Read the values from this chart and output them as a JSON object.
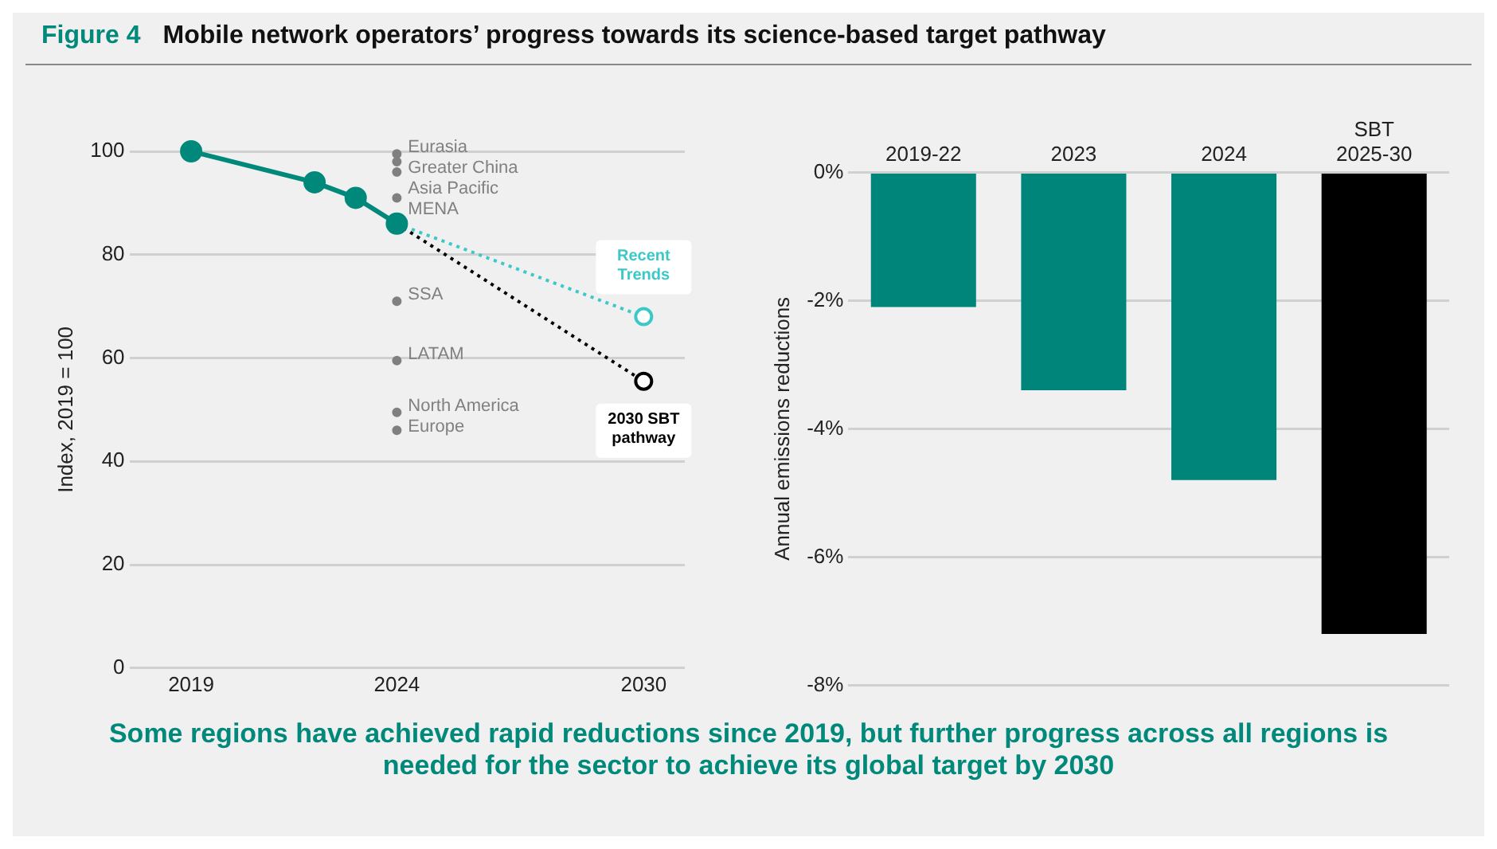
{
  "chart_data": [
    {
      "type": "line",
      "subtitle": "Figure 4",
      "title": "Mobile network operators’ progress towards its science-based target pathway",
      "ylabel": "Index, 2019 = 100",
      "xlim": [
        2017.5,
        2031
      ],
      "xticks": [
        2019,
        2024,
        2030
      ],
      "ylim": [
        0,
        100
      ],
      "yticks": [
        0,
        20,
        40,
        60,
        80,
        100
      ],
      "grid": "y",
      "legend": false,
      "marker": "circle",
      "annotations": [
        "Some regions have achieved rapid reductions since 2019, but further progress across all regions is needed for the sector to achieve its global target by 2030"
      ],
      "series": [
        {
          "type": "line",
          "color": "#00897b",
          "x": [
            2019,
            2022,
            2023,
            2024
          ],
          "values": [
            100,
            94,
            91,
            86
          ]
        },
        {
          "type": "line",
          "name": "Recent Trends",
          "color": "#3cc8c8",
          "line_style": "dotted",
          "x": [
            2024,
            2030
          ],
          "values": [
            86,
            68
          ]
        },
        {
          "type": "line",
          "name": "2030 SBT pathway",
          "color": "#000000",
          "line_style": "dotted",
          "x": [
            2024,
            2030
          ],
          "values": [
            86,
            55.5
          ]
        },
        {
          "type": "scatter",
          "name": "Eurasia",
          "color": "#808080",
          "x": [
            2024
          ],
          "values": [
            99.5
          ]
        },
        {
          "type": "scatter",
          "name": "Greater China",
          "color": "#808080",
          "x": [
            2024
          ],
          "values": [
            98
          ]
        },
        {
          "type": "scatter",
          "name": "Asia Pacific",
          "color": "#808080",
          "x": [
            2024
          ],
          "values": [
            96
          ]
        },
        {
          "type": "scatter",
          "name": "MENA",
          "color": "#808080",
          "x": [
            2024
          ],
          "values": [
            91
          ]
        },
        {
          "type": "scatter",
          "name": "SSA",
          "color": "#808080",
          "x": [
            2024
          ],
          "values": [
            71
          ]
        },
        {
          "type": "scatter",
          "name": "LATAM",
          "color": "#808080",
          "x": [
            2024
          ],
          "values": [
            59.5
          ]
        },
        {
          "type": "scatter",
          "name": "North America",
          "color": "#808080",
          "x": [
            2024
          ],
          "values": [
            49.5
          ]
        },
        {
          "type": "scatter",
          "name": "Europe",
          "color": "#808080",
          "x": [
            2024
          ],
          "values": [
            46
          ]
        }
      ]
    },
    {
      "type": "bar",
      "ylabel": "Annual emissions reductions",
      "categories": [
        "2019-22",
        "2023",
        "2024",
        "SBT 2025-30"
      ],
      "values": [
        -2.1,
        -3.4,
        -4.8,
        -7.2
      ],
      "colors": [
        "#00857a",
        "#00857a",
        "#00857a",
        "#000000"
      ],
      "ylim": [
        -8,
        0
      ],
      "yticks": [
        {
          "value": -8,
          "label": "-8%"
        },
        {
          "value": -6,
          "label": "-6%"
        },
        {
          "value": -4,
          "label": "-4%"
        },
        {
          "value": -2,
          "label": "-2%"
        },
        {
          "value": 0,
          "label": "0%"
        }
      ],
      "grid": "y",
      "legend": false
    }
  ]
}
